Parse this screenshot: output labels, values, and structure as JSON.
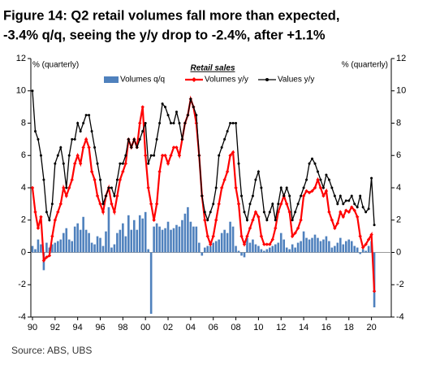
{
  "chart_data": {
    "type": "bar_line",
    "title": "Figure 14: Q2 retail volumes fall more than expected,",
    "subtitle": "-3.4% q/q, seeing the y/y drop to -2.4%, after +1.1%",
    "y_label": "% (quarterly)",
    "y2_label": "% (quarterly)",
    "legend_title": "Retail sales",
    "source": "Source: ABS, UBS",
    "categories": [
      "90",
      null,
      null,
      null,
      null,
      null,
      null,
      null,
      "92",
      null,
      null,
      null,
      null,
      null,
      null,
      null,
      "94",
      null,
      null,
      null,
      null,
      null,
      null,
      null,
      "96",
      null,
      null,
      null,
      null,
      null,
      null,
      null,
      "98",
      null,
      null,
      null,
      null,
      null,
      null,
      null,
      "00",
      null,
      null,
      null,
      null,
      null,
      null,
      null,
      "02",
      null,
      null,
      null,
      null,
      null,
      null,
      null,
      "04",
      null,
      null,
      null,
      null,
      null,
      null,
      null,
      "06",
      null,
      null,
      null,
      null,
      null,
      null,
      null,
      "08",
      null,
      null,
      null,
      null,
      null,
      null,
      null,
      "10",
      null,
      null,
      null,
      null,
      null,
      null,
      null,
      "12",
      null,
      null,
      null,
      null,
      null,
      null,
      null,
      "14",
      null,
      null,
      null,
      null,
      null,
      null,
      null,
      "16",
      null,
      null,
      null,
      null,
      null,
      null,
      null,
      "18",
      null,
      null,
      null,
      null,
      null,
      null,
      null,
      "20",
      null
    ],
    "series": [
      {
        "name": "Volumes q/q",
        "type": "bar",
        "color": "#4f81bd",
        "values": [
          0.4,
          0.2,
          0.8,
          0.5,
          -1.1,
          0.6,
          0.3,
          0.5,
          0.6,
          0.7,
          0.8,
          1.2,
          1.5,
          0.8,
          0.7,
          1.6,
          1.8,
          1.4,
          2.2,
          1.4,
          1.2,
          0.6,
          0.5,
          1.0,
          0.9,
          0.4,
          1.3,
          2.8,
          0.3,
          0.5,
          1.2,
          1.4,
          1.8,
          1.0,
          2.3,
          1.4,
          2.0,
          1.4,
          2.3,
          2.1,
          2.5,
          0.2,
          -3.8,
          1.6,
          1.8,
          1.6,
          1.4,
          1.5,
          1.9,
          1.4,
          1.5,
          1.7,
          1.6,
          2.0,
          2.4,
          2.8,
          1.9,
          1.6,
          1.6,
          0.6,
          -0.2,
          0.3,
          0.4,
          0.4,
          0.6,
          0.7,
          0.8,
          1.2,
          1.4,
          1.2,
          1.9,
          1.6,
          0.4,
          0.1,
          -0.2,
          -0.3,
          0.9,
          0.6,
          0.8,
          0.5,
          0.4,
          0.2,
          0.1,
          0.2,
          0.3,
          0.4,
          0.5,
          0.6,
          1.2,
          0.8,
          0.3,
          0.2,
          0.5,
          0.3,
          0.6,
          0.7,
          1.3,
          0.9,
          0.8,
          0.9,
          1.1,
          0.9,
          0.7,
          0.8,
          1.0,
          0.7,
          0.3,
          0.4,
          0.6,
          0.9,
          0.5,
          0.7,
          0.8,
          0.7,
          0.4,
          0.3,
          -0.1,
          0.2,
          0.1,
          0.4,
          0.7,
          -3.4
        ]
      },
      {
        "name": "Volumes y/y",
        "type": "line",
        "color": "#ff0000",
        "values": [
          4,
          2.5,
          1.5,
          2.2,
          -0.5,
          -0.3,
          -0.2,
          1,
          2,
          2.5,
          3,
          4,
          3.5,
          4,
          4.5,
          5.5,
          6,
          5.5,
          6.5,
          7,
          6.5,
          5,
          4.5,
          3.5,
          3,
          2.5,
          3.5,
          4,
          3,
          2.5,
          3.5,
          4.5,
          5,
          5.5,
          7,
          6.5,
          7,
          6.5,
          8,
          9,
          6,
          4,
          3,
          2,
          3,
          5,
          6,
          6,
          5.5,
          6,
          6.5,
          6.5,
          6,
          7,
          8,
          8.5,
          9.5,
          9,
          8,
          6,
          3.5,
          2,
          1,
          0.5,
          1,
          2,
          3,
          4,
          4.5,
          5,
          6,
          6.2,
          4,
          3,
          1,
          0.5,
          1,
          1.5,
          2,
          2.5,
          2.2,
          1,
          0.5,
          0.5,
          0.5,
          0.8,
          1.5,
          2.5,
          3,
          3.5,
          3,
          2.5,
          1,
          1.2,
          1.5,
          2,
          3.5,
          3.8,
          3.7,
          3.8,
          4,
          4.5,
          4,
          3.5,
          3.8,
          2.5,
          2,
          1.5,
          1.8,
          2.5,
          2.2,
          2.6,
          2.5,
          2.8,
          2.6,
          2.2,
          1,
          0.3,
          0.5,
          0.8,
          1.1,
          -2.4
        ]
      },
      {
        "name": "Values y/y",
        "type": "line",
        "color": "#000000",
        "values": [
          10,
          7.5,
          7,
          6,
          4.5,
          2.5,
          2,
          3,
          5.5,
          6,
          6.5,
          5.5,
          4,
          6,
          7,
          7,
          8,
          7.5,
          8,
          8.5,
          8.5,
          7.5,
          6.5,
          5.5,
          4.5,
          3,
          3.5,
          4,
          4,
          3.5,
          4.5,
          5.5,
          5.5,
          6,
          7,
          6.5,
          7,
          6.5,
          7,
          7.5,
          8,
          5.5,
          6,
          6,
          7,
          8,
          9.2,
          9,
          8.5,
          8,
          8,
          8.7,
          8,
          7,
          8,
          8.5,
          9.5,
          9,
          8.5,
          6,
          3.5,
          2.5,
          2,
          2.5,
          3,
          4,
          6,
          6.5,
          7,
          7.5,
          8,
          8,
          8,
          5.5,
          3.5,
          2.5,
          2,
          3,
          3.5,
          4.5,
          5,
          4,
          2.5,
          2,
          2.5,
          3,
          2,
          3,
          4,
          3.5,
          4,
          3.5,
          2,
          2.5,
          3,
          3.5,
          4,
          4.5,
          5.5,
          5.8,
          5.5,
          5,
          4.5,
          4,
          4.8,
          4.5,
          4,
          3.5,
          3,
          3.5,
          3,
          3.2,
          3.2,
          3.5,
          3,
          2.8,
          3.5,
          2.8,
          2.5,
          2.7,
          4.6,
          1.7
        ]
      }
    ],
    "ylim": [
      -4,
      12
    ],
    "yticks": [
      -4,
      -2,
      0,
      2,
      4,
      6,
      8,
      10,
      12
    ],
    "y2lim": [
      -4,
      12
    ],
    "y2ticks": [
      -4,
      -2,
      0,
      2,
      4,
      6,
      8,
      10,
      12
    ]
  }
}
